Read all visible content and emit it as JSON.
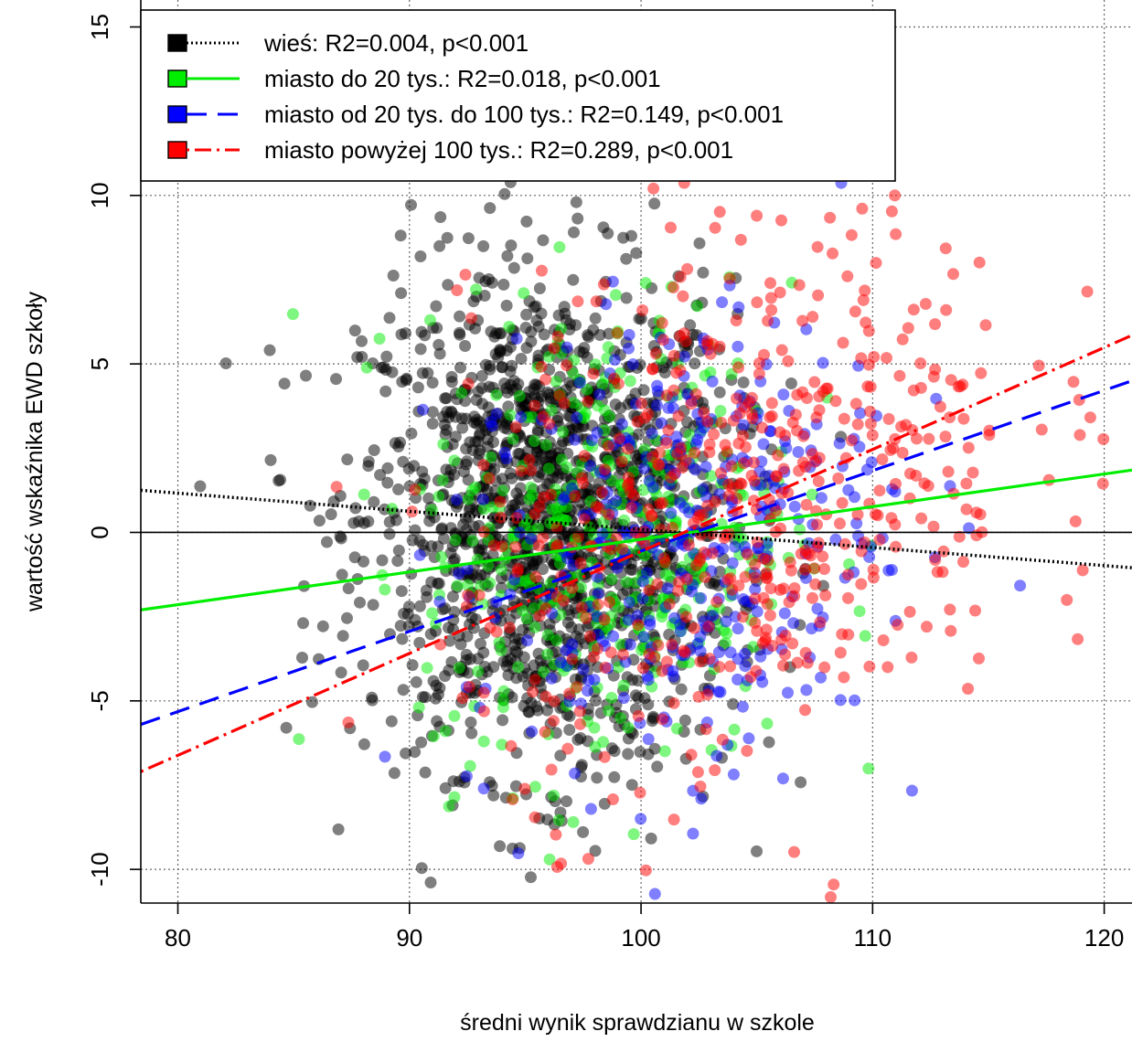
{
  "chart_data": {
    "type": "scatter",
    "xlabel": "średni wynik sprawdzianu w szkole",
    "ylabel": "wartość wskaźnika EWD szkoły",
    "xlim": [
      78.4,
      121.2
    ],
    "ylim": [
      -11.0,
      15.8
    ],
    "x_ticks": [
      80,
      90,
      100,
      110,
      120
    ],
    "y_ticks": [
      -10,
      -5,
      0,
      5,
      10,
      15
    ],
    "grid": true,
    "legend_placement": "top-left",
    "reference_line_y": 0,
    "series": [
      {
        "name": "wieś",
        "legend_label": "wieś: R2=0.004, p<0.001",
        "color": "#000000",
        "line_style": "dotted",
        "fit_line": {
          "x": [
            78.4,
            121.2
          ],
          "y": [
            1.25,
            -1.05
          ]
        },
        "cluster": {
          "mean_x": 96.0,
          "mean_y": 0.3,
          "sd_x": 4.0,
          "sd_y": 3.7,
          "count": 1500
        }
      },
      {
        "name": "miasto do 20 tys.",
        "legend_label": "miasto do 20 tys.: R2=0.018, p<0.001",
        "color": "#00ee00",
        "line_style": "solid",
        "fit_line": {
          "x": [
            78.4,
            121.2
          ],
          "y": [
            -2.3,
            1.85
          ]
        },
        "cluster": {
          "mean_x": 98.5,
          "mean_y": -0.1,
          "sd_x": 4.0,
          "sd_y": 3.5,
          "count": 420
        }
      },
      {
        "name": "miasto od 20 tys. do 100 tys.",
        "legend_label": "miasto od 20 tys. do 100 tys.: R2=0.149, p<0.001",
        "color": "#0000ff",
        "line_style": "dashed",
        "fit_line": {
          "x": [
            78.4,
            121.2
          ],
          "y": [
            -5.7,
            4.5
          ]
        },
        "cluster": {
          "mean_x": 101.5,
          "mean_y": -0.2,
          "sd_x": 4.5,
          "sd_y": 3.5,
          "count": 380
        }
      },
      {
        "name": "miasto powyżej 100 tys.",
        "legend_label": "miasto powyżej 100 tys.: R2=0.289, p<0.001",
        "color": "#ff0000",
        "line_style": "dotdash",
        "fit_line": {
          "x": [
            78.4,
            121.2
          ],
          "y": [
            -7.1,
            5.85
          ]
        },
        "cluster": {
          "mean_x": 104.5,
          "mean_y": 1.0,
          "sd_x": 6.0,
          "sd_y": 4.0,
          "count": 560
        }
      }
    ]
  }
}
